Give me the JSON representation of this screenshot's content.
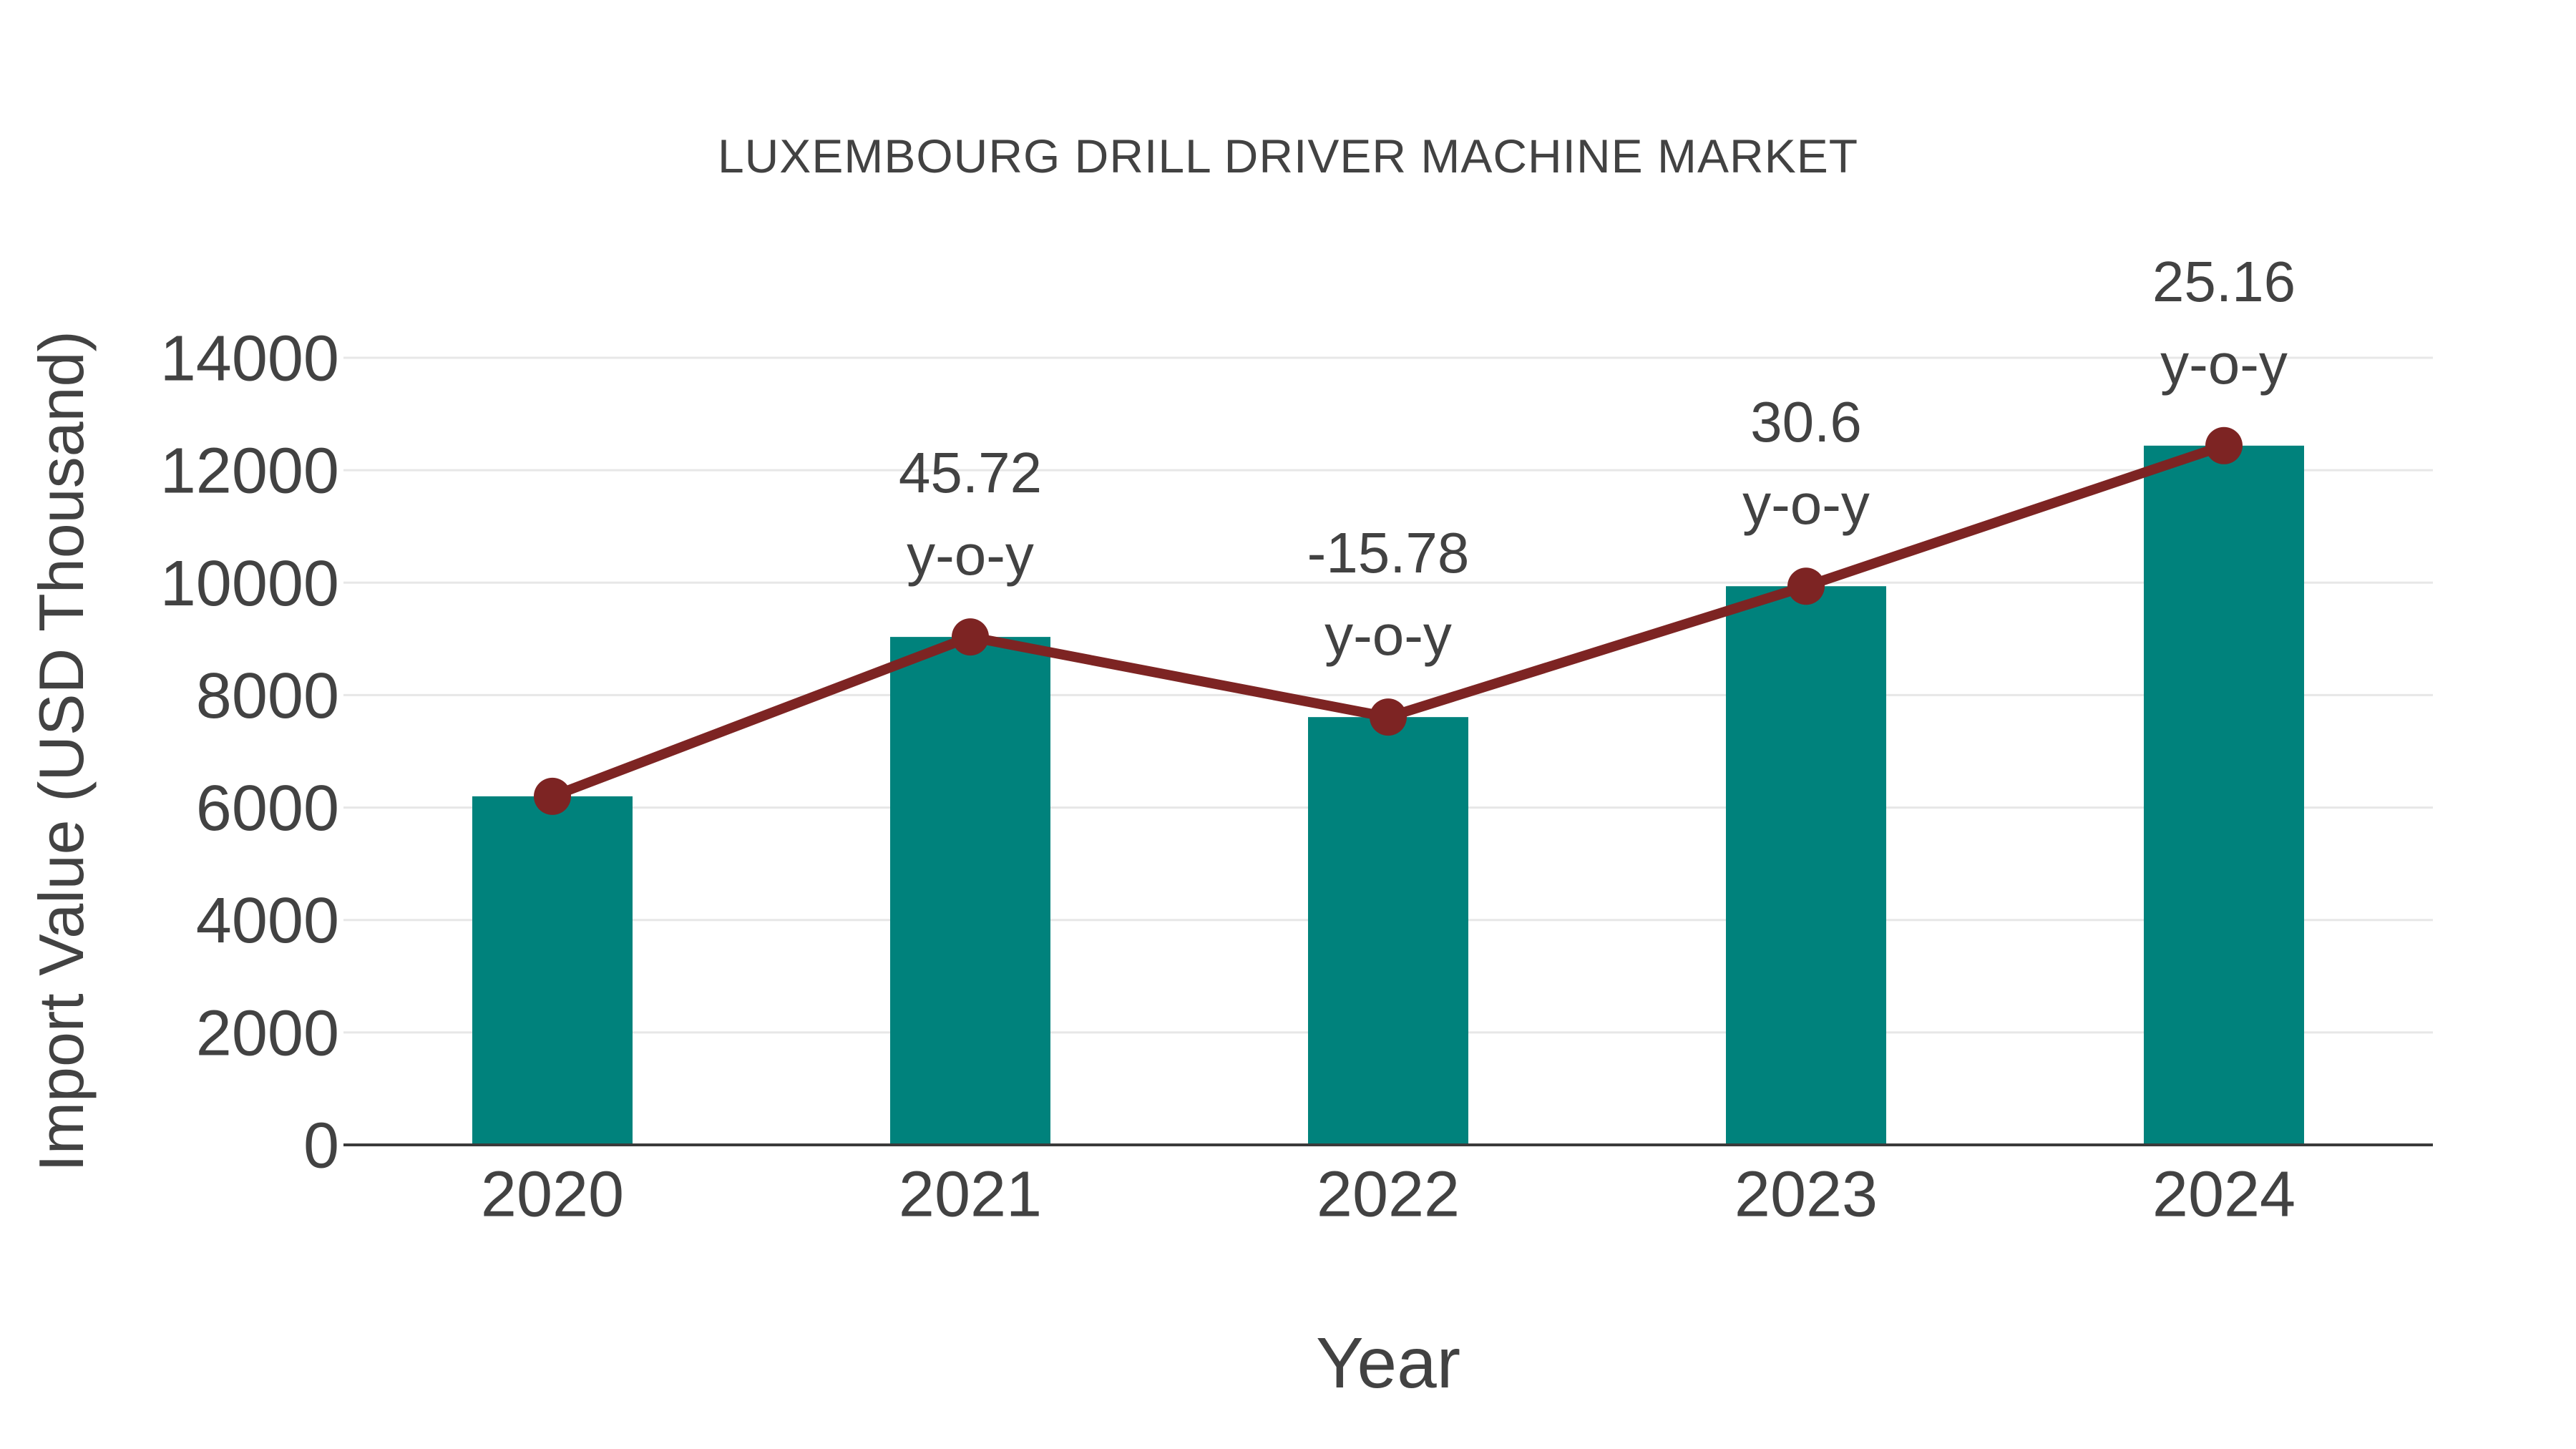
{
  "page": {
    "background": "#FFFFFF"
  },
  "chart_data": {
    "type": "combo-bar-line",
    "title": "LUXEMBOURG DRILL DRIVER MACHINE MARKET",
    "xlabel": "Year",
    "ylabel": "Import Value (USD Thousand)",
    "categories": [
      "2020",
      "2021",
      "2022",
      "2023",
      "2024"
    ],
    "series": [
      {
        "name": "import-value-bars",
        "type": "bar",
        "values": [
          6200,
          9035,
          7609,
          9937,
          12437
        ],
        "color": "#00827C"
      },
      {
        "name": "import-value-trend-line",
        "type": "line",
        "values": [
          6200,
          9035,
          7609,
          9937,
          12437
        ],
        "color": "#7D2423"
      }
    ],
    "annotations": [
      {
        "category": "2021",
        "text_line1": "45.72",
        "text_line2": "y-o-y"
      },
      {
        "category": "2022",
        "text_line1": "-15.78",
        "text_line2": "y-o-y"
      },
      {
        "category": "2023",
        "text_line1": "30.6",
        "text_line2": "y-o-y"
      },
      {
        "category": "2024",
        "text_line1": "25.16",
        "text_line2": "y-o-y"
      }
    ],
    "ylim": [
      0,
      14000
    ],
    "yticks": [
      0,
      2000,
      4000,
      6000,
      8000,
      10000,
      12000,
      14000
    ],
    "grid": true,
    "legend_position": "none",
    "text_color": "#424242",
    "gridline_color": "#E7E7E7",
    "axis_line_color": "#3A3A3A"
  }
}
